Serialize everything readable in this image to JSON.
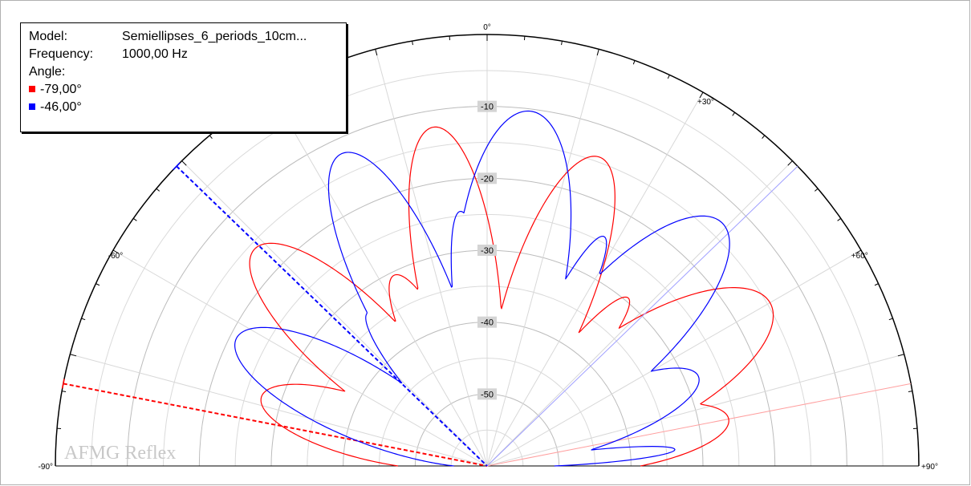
{
  "legend": {
    "model_label": "Model:",
    "model_value": "Semiellipses_6_periods_10cm...",
    "frequency_label": "Frequency:",
    "frequency_value": "1000,00 Hz",
    "angle_label": "Angle:",
    "series": [
      {
        "label": "-79,00°",
        "color": "#ff0000"
      },
      {
        "label": "-46,00°",
        "color": "#0000ff"
      }
    ]
  },
  "watermark": "AFMG Reflex",
  "chart_data": {
    "type": "polar",
    "r_range": [
      -60,
      0
    ],
    "r_ticks": [
      {
        "value": -10,
        "label": "-10"
      },
      {
        "value": -20,
        "label": "-20"
      },
      {
        "value": -30,
        "label": "-30"
      },
      {
        "value": -40,
        "label": "-40"
      },
      {
        "value": -50,
        "label": "-50"
      }
    ],
    "angle_range": [
      -90,
      90
    ],
    "angle_ticks": [
      {
        "value": -90,
        "label": "-90°"
      },
      {
        "value": -60,
        "label": "-60°"
      },
      {
        "value": 0,
        "label": "0°"
      },
      {
        "value": 30,
        "label": "+30°"
      },
      {
        "value": 60,
        "label": "+60°"
      },
      {
        "value": 90,
        "label": "+90°"
      }
    ],
    "grid": true,
    "series": [
      {
        "name": "-79,00°",
        "color": "#ff0000",
        "incident_angle": -79,
        "reflected_angle": 79,
        "lobes": [
          {
            "center": -73,
            "width": 14,
            "peak": -27.2
          },
          {
            "center": -47,
            "width": 15,
            "peak": -15.8
          },
          {
            "center": -26,
            "width": 11,
            "peak": -30.5
          },
          {
            "center": -9,
            "width": 13,
            "peak": -12.3
          },
          {
            "center": 5,
            "width": 7,
            "peak": -38.9
          },
          {
            "center": 20,
            "width": 14,
            "peak": -14.3
          },
          {
            "center": 40,
            "width": 8,
            "peak": -29.5
          },
          {
            "center": 60,
            "width": 18,
            "peak": -14.6
          },
          {
            "center": 79,
            "width": 13,
            "peak": -25.8
          }
        ]
      },
      {
        "name": "-46,00°",
        "color": "#0000ff",
        "incident_angle": -46,
        "reflected_angle": 46,
        "lobes": [
          {
            "center": -63,
            "width": 15,
            "peak": -20.9
          },
          {
            "center": -38,
            "width": 9,
            "peak": -33.0
          },
          {
            "center": -25,
            "width": 14,
            "peak": -12.1
          },
          {
            "center": -6,
            "width": 7,
            "peak": -24.4
          },
          {
            "center": 7,
            "width": 17,
            "peak": -10.3
          },
          {
            "center": 27,
            "width": 7,
            "peak": -24.2
          },
          {
            "center": 44,
            "width": 17,
            "peak": -13.0
          },
          {
            "center": 67,
            "width": 13,
            "peak": -28.1
          },
          {
            "center": 85,
            "width": 4,
            "peak": -33.8
          }
        ]
      }
    ]
  }
}
